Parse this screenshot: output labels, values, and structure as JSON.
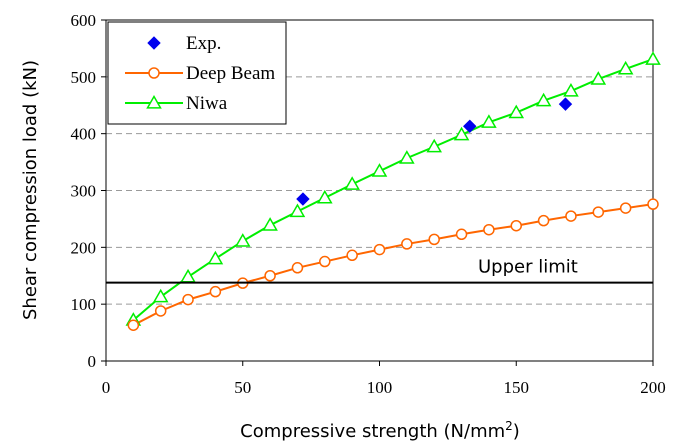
{
  "chart_data": {
    "type": "line",
    "xlabel": "Compressive strength (N/mm",
    "xlabel_sup": "2",
    "xlabel_end": ")",
    "ylabel": "Shear compression load (kN)",
    "xlim": [
      0,
      200
    ],
    "ylim": [
      0,
      600
    ],
    "xticks": [
      "0",
      "50",
      "100",
      "150",
      "200"
    ],
    "yticks": [
      "0",
      "100",
      "200",
      "300",
      "400",
      "500",
      "600"
    ],
    "grid": "horizontal dashed",
    "legend_position": "top-left",
    "series": [
      {
        "name": "Exp.",
        "marker": "diamond",
        "color": "#0000ee",
        "line": false,
        "x": [
          72,
          133,
          168
        ],
        "y": [
          285,
          413,
          452
        ]
      },
      {
        "name": "Deep Beam",
        "marker": "circle",
        "color": "#ff6600",
        "line": true,
        "x": [
          10,
          20,
          30,
          40,
          50,
          60,
          70,
          80,
          90,
          100,
          110,
          120,
          130,
          140,
          150,
          160,
          170,
          180,
          190,
          200
        ],
        "y": [
          63,
          88,
          108,
          122,
          137,
          150,
          164,
          175,
          186,
          196,
          206,
          214,
          223,
          231,
          238,
          247,
          255,
          262,
          269,
          276
        ]
      },
      {
        "name": "Niwa",
        "marker": "triangle",
        "color": "#00ee00",
        "line": true,
        "x": [
          10,
          20,
          30,
          40,
          50,
          60,
          70,
          80,
          90,
          100,
          110,
          120,
          130,
          140,
          150,
          160,
          170,
          180,
          190,
          200
        ],
        "y": [
          72,
          113,
          148,
          180,
          211,
          239,
          263,
          287,
          311,
          334,
          357,
          377,
          398,
          420,
          437,
          458,
          475,
          496,
          514,
          531
        ]
      }
    ],
    "reference_line": {
      "label": "Upper limit",
      "y": 138
    }
  }
}
